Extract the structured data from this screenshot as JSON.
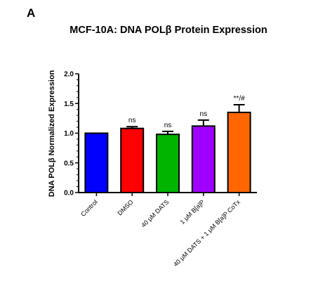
{
  "panel_label": "A",
  "chart_data": {
    "type": "bar",
    "title": "MCF-10A: DNA POLβ Protein Expression",
    "xlabel": "",
    "ylabel": "DNA POLβ Normalized Expression",
    "ylim": [
      0,
      2.0
    ],
    "yticks": [
      "0.0",
      "0.5",
      "1.0",
      "1.5",
      "2.0"
    ],
    "grid": false,
    "categories": [
      "Control",
      "DMSO",
      "40 μM DATS",
      "1 μM B[a]P",
      "40 μM DATS + 1 μM B[a]P CoTx"
    ],
    "values": [
      1.0,
      1.08,
      0.98,
      1.12,
      1.35
    ],
    "errors": [
      0.0,
      0.03,
      0.05,
      0.1,
      0.13
    ],
    "significance": [
      "",
      "ns",
      "ns",
      "ns",
      "**/#"
    ],
    "colors": [
      "#0000ff",
      "#ff0000",
      "#00b400",
      "#a000ff",
      "#ff6600"
    ]
  }
}
